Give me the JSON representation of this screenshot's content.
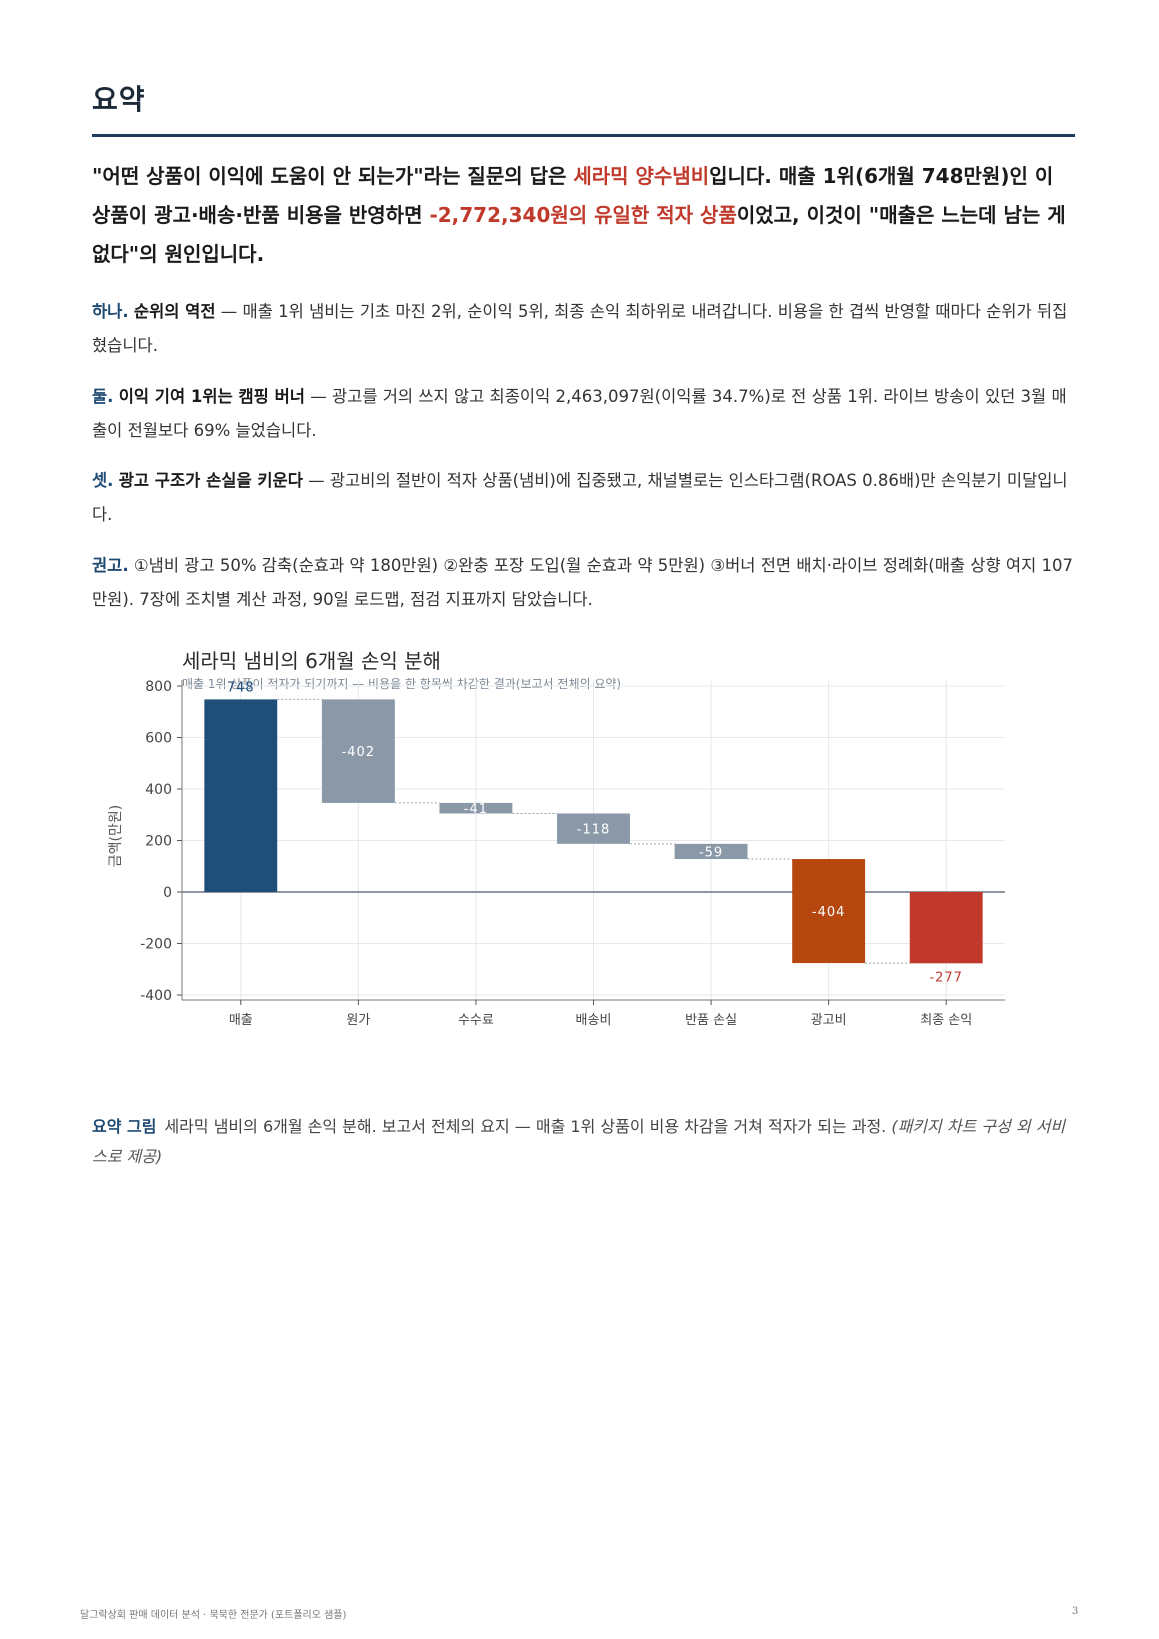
{
  "section": {
    "title": "요약"
  },
  "lead": {
    "part1": "\"어떤 상품이 이익에 도움이 안 되는가\"라는 질문의 답은 ",
    "highlight1": "세라믹 양수냄비",
    "part2": "입니다. 매출 1위(6개월 748만원)인 이 상품이 광고·배송·반품 비용을 반영하면 ",
    "highlight2": "-2,772,340원의 유일한 적자 상품",
    "part3": "이었고, 이것이 \"매출은 느는데 남는 게 없다\"의 원인입니다."
  },
  "findings": [
    {
      "label": "하나.",
      "term": "순위의 역전",
      "text": " — 매출 1위 냄비는 기초 마진 2위, 순이익 5위, 최종 손익 최하위로 내려갑니다. 비용을 한 겹씩 반영할 때마다 순위가 뒤집혔습니다."
    },
    {
      "label": "둘.",
      "term": "이익 기여 1위는 캠핑 버너",
      "text": " — 광고를 거의 쓰지 않고 최종이익 2,463,097원(이익률 34.7%)로 전 상품 1위. 라이브 방송이 있던 3월 매출이 전월보다 69% 늘었습니다."
    },
    {
      "label": "셋.",
      "term": "광고 구조가 손실을 키운다",
      "text": " — 광고비의 절반이 적자 상품(냄비)에 집중됐고, 채널별로는 인스타그램(ROAS 0.86배)만 손익분기 미달입니다."
    },
    {
      "label": "권고.",
      "term": "",
      "text": "①냄비 광고 50% 감축(순효과 약 180만원) ②완충 포장 도입(월 순효과 약 5만원) ③버너 전면 배치·라이브 정례화(매출 상향 여지 107만원). 7장에 조치별 계산 과정, 90일 로드맵, 점검 지표까지 담았습니다."
    }
  ],
  "chart_data": {
    "type": "bar",
    "subtype": "waterfall",
    "title": "세라믹 냄비의 6개월 손익 분해",
    "subtitle": "매출 1위 상품이 적자가 되기까지 — 비용을 한 항목씩 차감한 결과(보고서 전체의 요약)",
    "xlabel": "",
    "ylabel": "금액(만원)",
    "ylim": [
      -400,
      800
    ],
    "yticks": [
      800,
      600,
      400,
      200,
      0,
      -200,
      -400
    ],
    "ytick_labels": [
      "800",
      "600",
      "400",
      "200",
      "0",
      "-200",
      "-400"
    ],
    "categories": [
      "매출",
      "원가",
      "수수료",
      "배송비",
      "반품 손실",
      "광고비",
      "최종 손익"
    ],
    "values": [
      748,
      -402,
      -41,
      -118,
      -59,
      -404,
      -277
    ],
    "data_labels": [
      "748",
      "-402",
      "-41",
      "-118",
      "-59",
      "-404",
      "-277"
    ],
    "kinds": [
      "total",
      "delta",
      "delta",
      "delta",
      "delta",
      "delta",
      "total"
    ],
    "colors": [
      "#1f4e79",
      "#8a98a8",
      "#8a98a8",
      "#8a98a8",
      "#8a98a8",
      "#b5470f",
      "#c0392b"
    ],
    "label_colors": [
      "#1f4e79",
      "#ffffff",
      "#ffffff",
      "#ffffff",
      "#ffffff",
      "#ffffff",
      "#c0392b"
    ],
    "grid": true,
    "legend": "none"
  },
  "caption": {
    "label": "요약 그림",
    "text": "세라믹 냄비의 6개월 손익 분해. 보고서 전체의 요지 — 매출 1위 상품이 비용 차감을 거쳐 적자가 되는 과정. ",
    "note": "(패키지 차트 구성 외 서비스로 제공)"
  },
  "footer": {
    "left": "달그락상회 판매 데이터 분석 · 묵묵한 전문가 (포트폴리오 샘플)",
    "page": "3"
  }
}
